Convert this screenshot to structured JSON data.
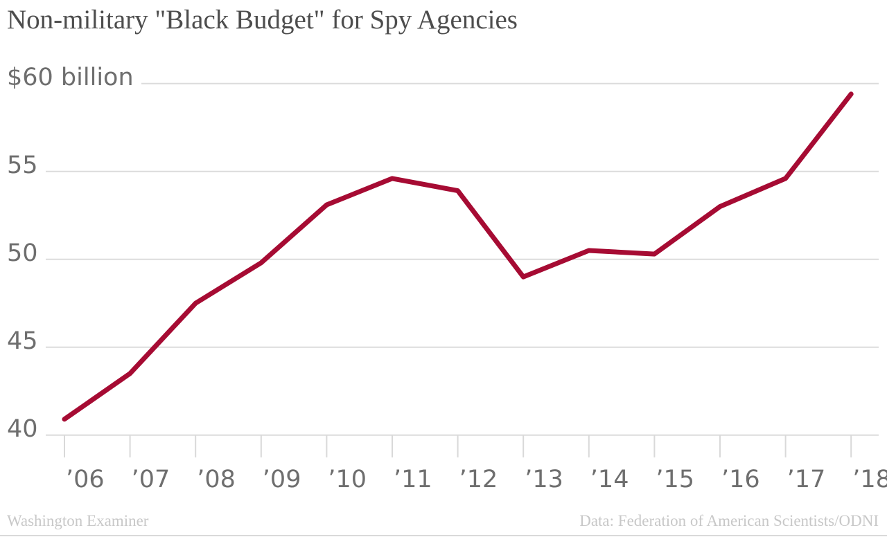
{
  "title": "Non-military \"Black Budget\" for Spy Agencies",
  "footer": {
    "source_left": "Washington Examiner",
    "source_right": "Data: Federation of American Scientists/ODNI"
  },
  "colors": {
    "line": "#a60b33",
    "grid": "#dcdcdc",
    "tick": "#d9d9d9",
    "title_text": "#4d4d4d",
    "axis_text": "#6e6e6e",
    "credit_text": "#c8c8c8",
    "background": "#ffffff"
  },
  "chart_data": {
    "type": "line",
    "title": "Non-military \"Black Budget\" for Spy Agencies",
    "unit": "$ billion",
    "years": [
      2006,
      2007,
      2008,
      2009,
      2010,
      2011,
      2012,
      2013,
      2014,
      2015,
      2016,
      2017,
      2018
    ],
    "x_tick_labels": [
      "’06",
      "’07",
      "’08",
      "’09",
      "’10",
      "’11",
      "’12",
      "’13",
      "’14",
      "’15",
      "’16",
      "’17",
      "’18"
    ],
    "values": [
      40.9,
      43.5,
      47.5,
      49.8,
      53.1,
      54.6,
      53.9,
      49.0,
      50.5,
      50.3,
      53.0,
      54.6,
      59.4
    ],
    "yticks": [
      {
        "value": 60,
        "label": "$60 billion"
      },
      {
        "value": 55,
        "label": "55"
      },
      {
        "value": 50,
        "label": "50"
      },
      {
        "value": 45,
        "label": "45"
      },
      {
        "value": 40,
        "label": "40"
      }
    ],
    "ylim": [
      40,
      60
    ],
    "grid": "horizontal",
    "legend": false
  }
}
